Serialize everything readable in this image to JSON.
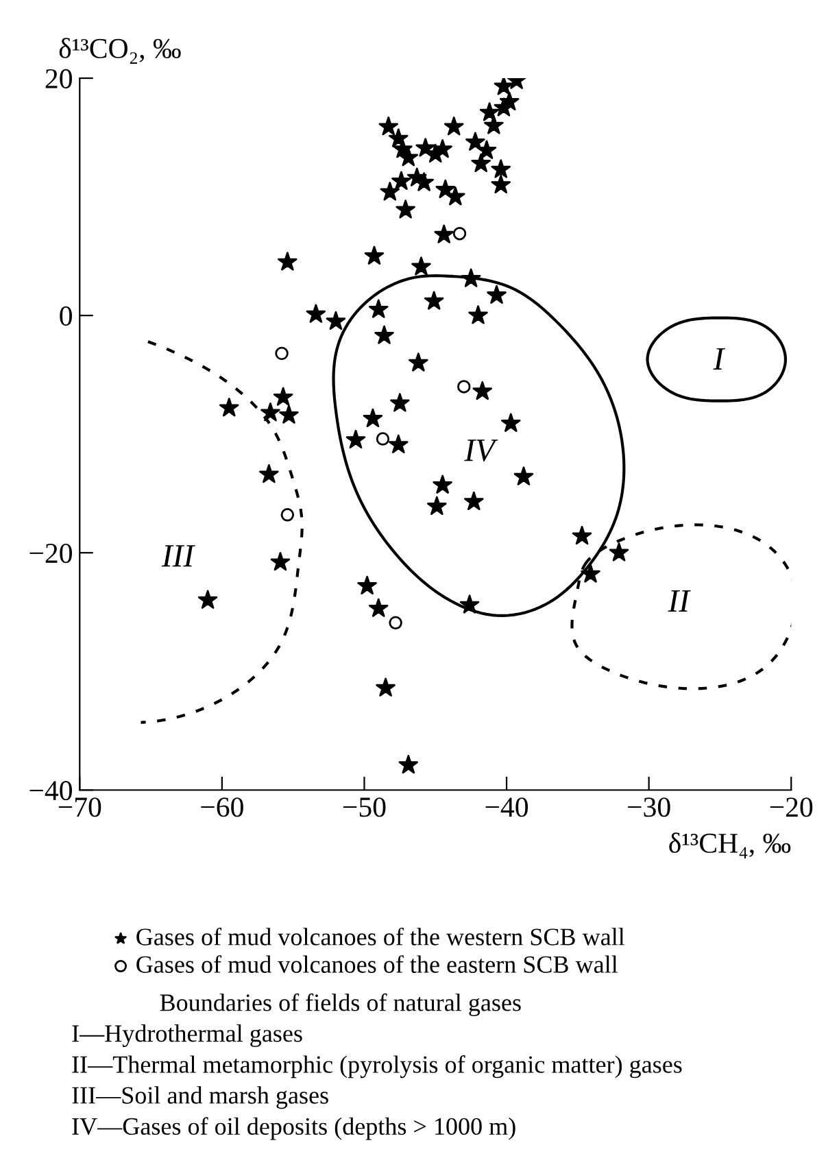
{
  "chart_data": {
    "type": "scatter",
    "xlabel": "δ¹³CH₄, ‰",
    "ylabel": "δ¹³CO₂, ‰",
    "xlim": [
      -70,
      -20
    ],
    "ylim": [
      -40,
      20
    ],
    "xticks": [
      -70,
      -60,
      -50,
      -40,
      -30,
      -20
    ],
    "yticks": [
      -40,
      -20,
      0,
      20
    ],
    "legend": "bottom",
    "series": [
      {
        "name": "Gases of mud volcanoes of the western SCB wall",
        "marker": "star",
        "color": "#000000",
        "x": [
          -39.3,
          -40.2,
          -39.8,
          -40.2,
          -41.2,
          -40.9,
          -43.7,
          -48.3,
          -47.6,
          -42.2,
          -47.3,
          -46.9,
          -45.7,
          -45.0,
          -44.5,
          -41.4,
          -41.8,
          -40.4,
          -40.4,
          -47.4,
          -46.3,
          -45.8,
          -48.2,
          -44.3,
          -43.6,
          -47.1,
          -44.4,
          -46.0,
          -42.5,
          -55.4,
          -49.3,
          -40.7,
          -45.1,
          -49.0,
          -42.0,
          -53.4,
          -52.0,
          -48.6,
          -46.2,
          -41.7,
          -47.5,
          -49.4,
          -55.7,
          -56.6,
          -55.3,
          -39.7,
          -59.5,
          -50.6,
          -56.7,
          -55.9,
          -47.6,
          -38.8,
          -44.5,
          -44.9,
          -42.3,
          -34.7,
          -34.1,
          -32.1,
          -49.8,
          -49.0,
          -42.6,
          -48.5,
          -46.9,
          -61.0
        ],
        "values": [
          19.8,
          19.3,
          18.0,
          17.5,
          17.1,
          16.0,
          15.9,
          15.9,
          14.9,
          14.6,
          14.0,
          13.3,
          14.1,
          13.6,
          14.0,
          13.9,
          12.8,
          12.3,
          11.0,
          11.3,
          11.6,
          11.2,
          10.4,
          10.6,
          10.0,
          8.9,
          6.8,
          4.1,
          3.1,
          4.5,
          5.0,
          1.7,
          1.2,
          0.5,
          0.0,
          0.1,
          -0.5,
          -1.7,
          -4.0,
          -6.4,
          -7.4,
          -8.7,
          -6.9,
          -8.2,
          -8.4,
          -9.1,
          -7.8,
          -10.5,
          -13.4,
          -20.8,
          -10.9,
          -13.6,
          -14.3,
          -16.1,
          -15.7,
          -18.6,
          -21.8,
          -20.0,
          -22.8,
          -24.7,
          -24.4,
          -31.4,
          -37.9,
          -24.0
        ]
      },
      {
        "name": "Gases of mud volcanoes of the eastern SCB wall",
        "marker": "circle",
        "color": "#000000",
        "x": [
          -43.3,
          -55.8,
          -43.0,
          -48.7,
          -55.4,
          -47.8
        ],
        "values": [
          6.9,
          -3.2,
          -6.0,
          -10.4,
          -16.8,
          -25.9
        ]
      }
    ],
    "annotations": [
      "I",
      "II",
      "III",
      "IV",
      "Boundaries of fields of natural gases",
      "I—Hydrothermal gases",
      "II—Thermal metamorphic (pyrolysis of organic matter) gases",
      "III—Soil and marsh gases",
      "IV—Gases of oil deposits (depths > 1000 m)"
    ]
  }
}
